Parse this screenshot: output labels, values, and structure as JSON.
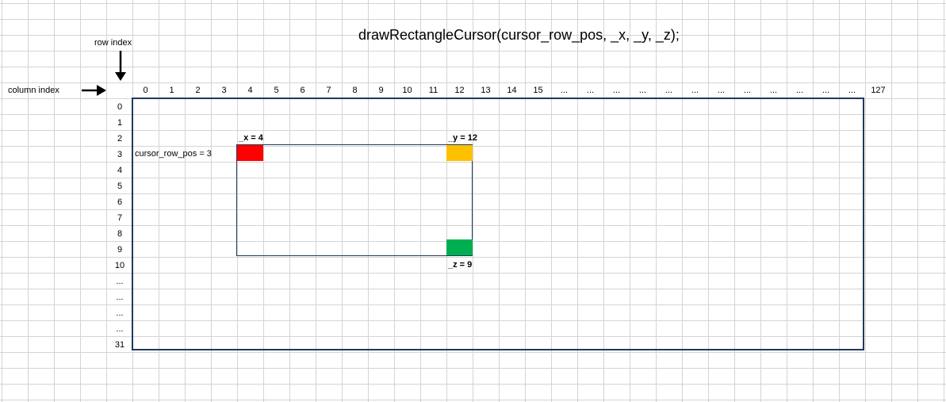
{
  "title": "drawRectangleCursor(cursor_row_pos, _x, _y, _z);",
  "row_index_label": "row index",
  "column_index_label": "column index",
  "column_indices": [
    "0",
    "1",
    "2",
    "3",
    "4",
    "5",
    "6",
    "7",
    "8",
    "9",
    "10",
    "11",
    "12",
    "13",
    "14",
    "15",
    "...",
    "...",
    "...",
    "...",
    "...",
    "...",
    "...",
    "...",
    "...",
    "...",
    "...",
    "...",
    "127"
  ],
  "row_indices": [
    "0",
    "1",
    "2",
    "3",
    "4",
    "5",
    "6",
    "7",
    "8",
    "9",
    "10",
    "...",
    "...",
    "...",
    "...",
    "31"
  ],
  "cursor_label": "cursor_row_pos = 3",
  "x_label": "_x = 4",
  "y_label": "_y = 12",
  "z_label": "_z = 9",
  "colors": {
    "x_cell": "#ff0000",
    "y_cell": "#ffc000",
    "z_cell": "#00b050",
    "border": "#1f3a5a",
    "grid": "#d4d4d4"
  }
}
